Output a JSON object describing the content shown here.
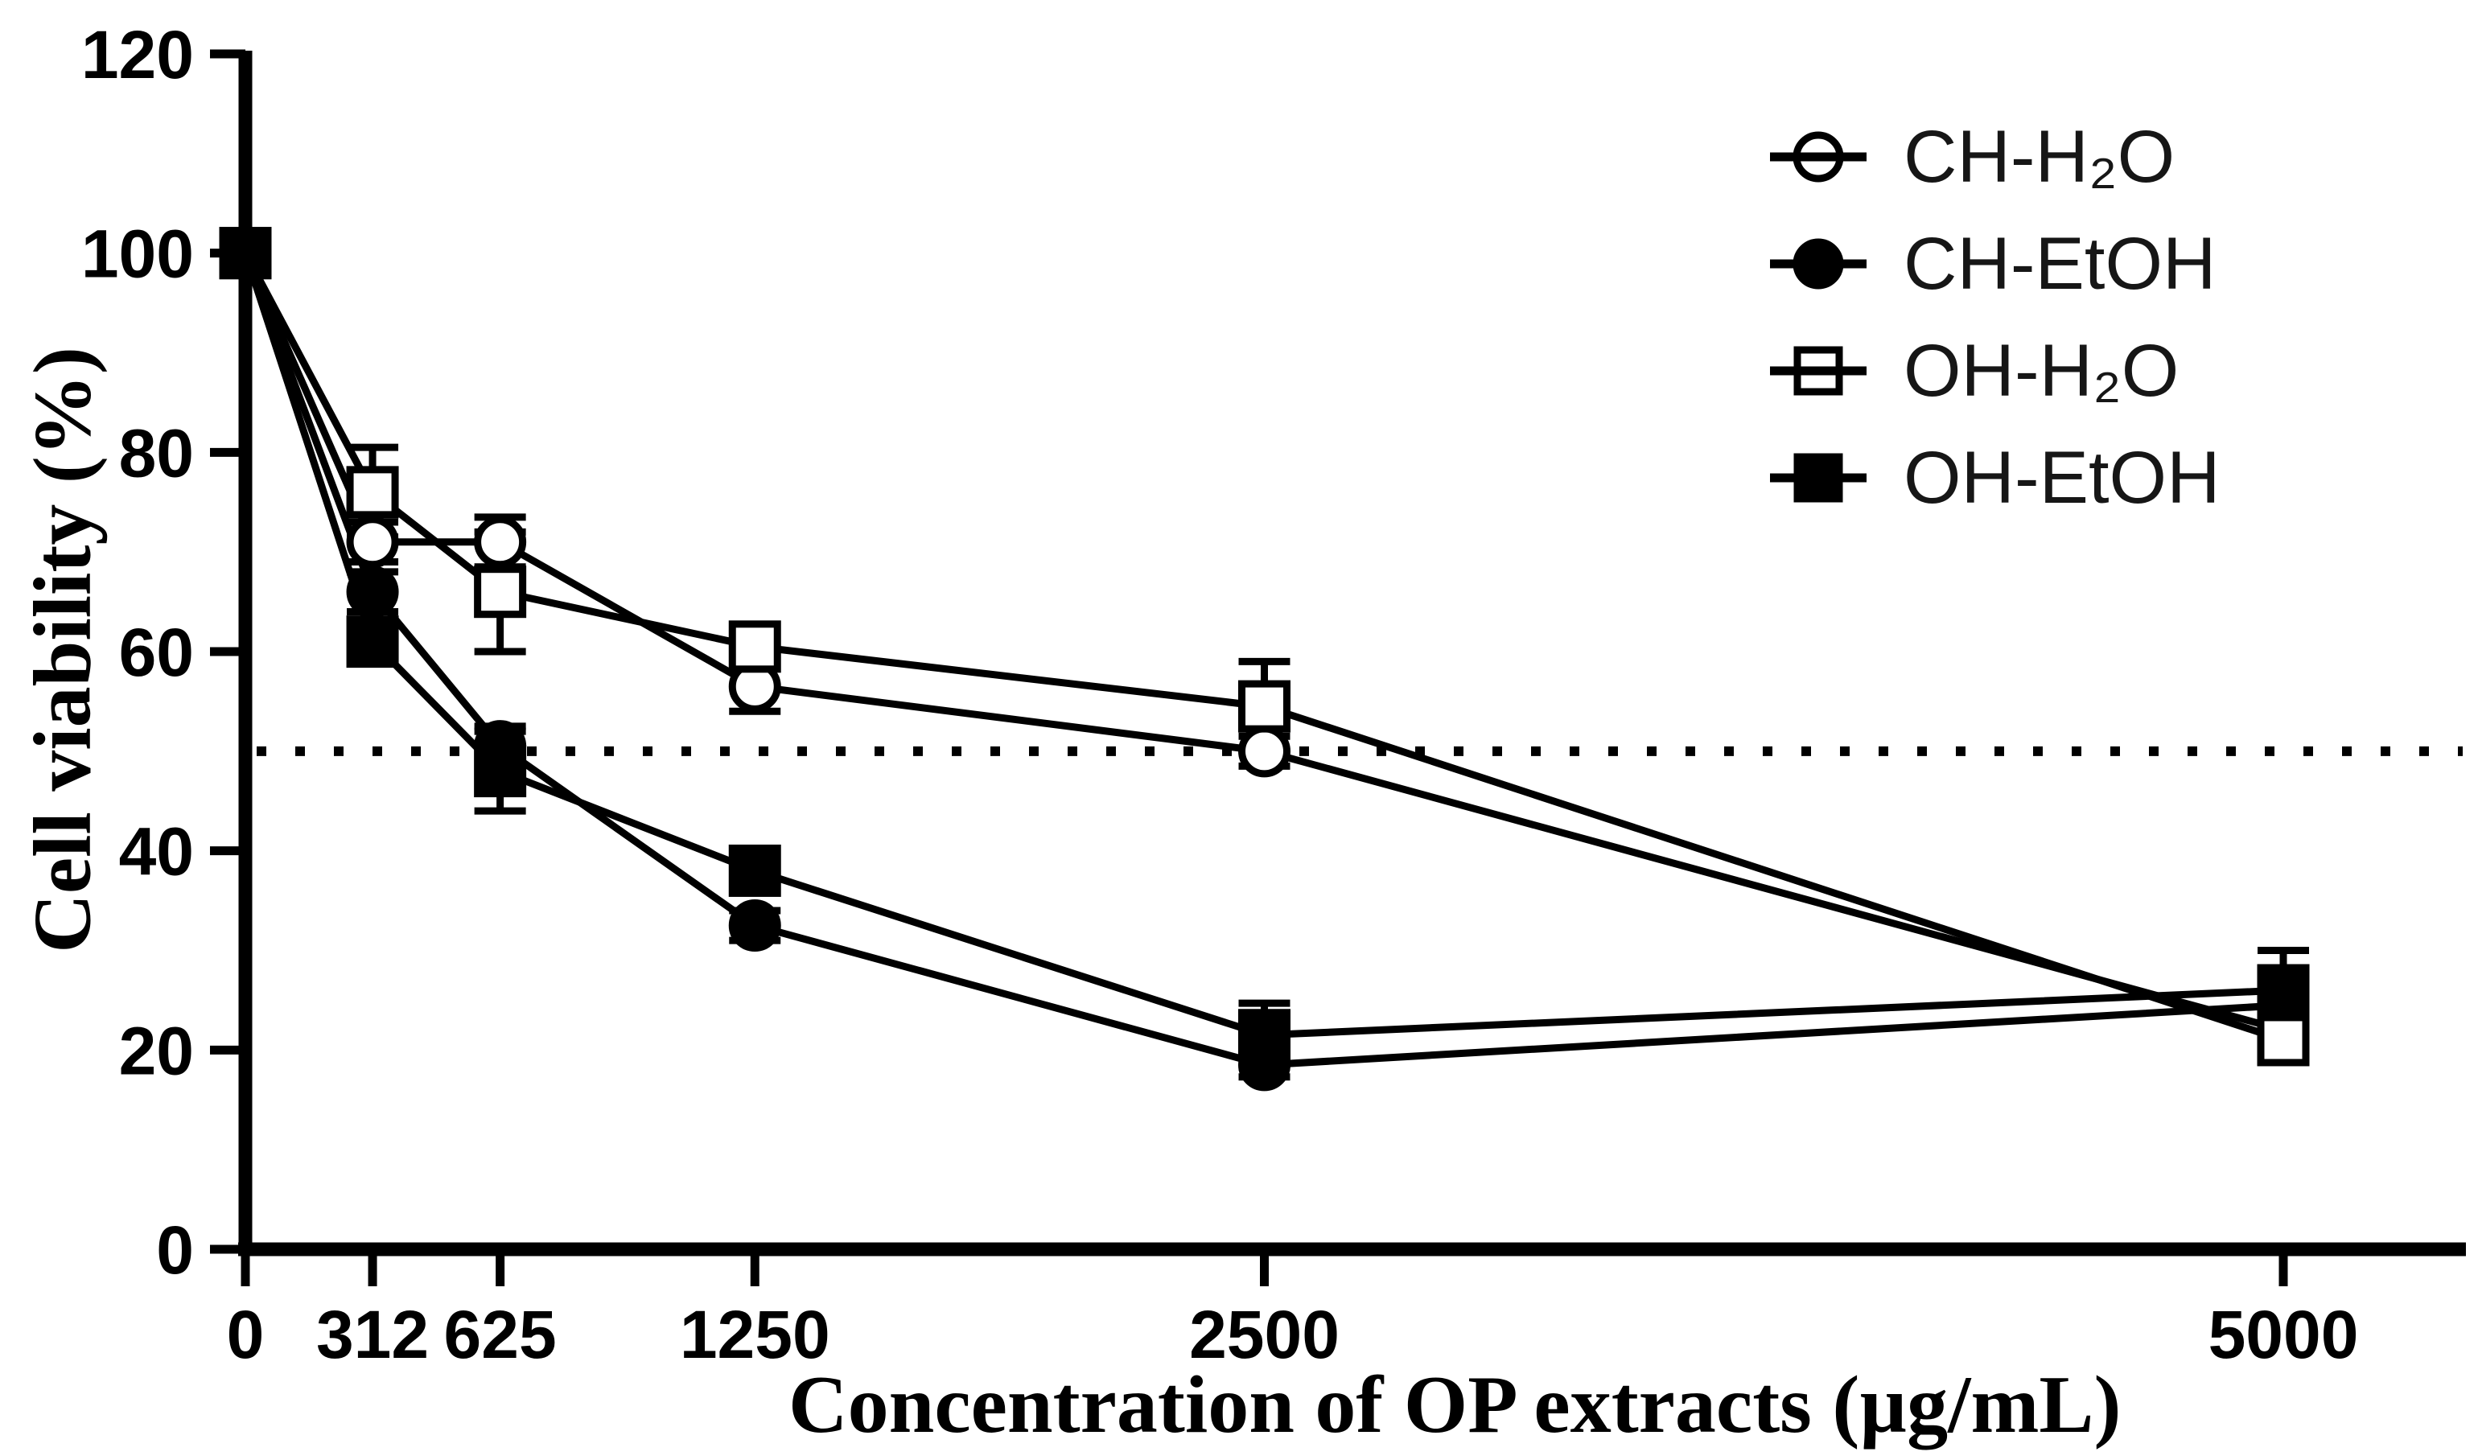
{
  "figure": {
    "background": "#ffffff",
    "ink_color": "#000000",
    "legend_text_color": "#161616"
  },
  "chart_data": {
    "type": "line",
    "title": "",
    "xlabel": "Concentration of OP extracts (µg/mL)",
    "ylabel": "Cell viability (%)",
    "x": [
      0,
      312,
      625,
      1250,
      2500,
      5000
    ],
    "x_tick_labels": [
      "0",
      "312",
      "625",
      "1250",
      "2500",
      "5000"
    ],
    "y_ticks": [
      0,
      20,
      40,
      60,
      80,
      100,
      120
    ],
    "ylim": [
      0,
      120
    ],
    "xlim": [
      0,
      5450
    ],
    "grid": false,
    "legend_position": "top-right",
    "reference_line": {
      "y": 50,
      "style": "dotted"
    },
    "series": [
      {
        "name": "CH-H₂O",
        "marker": "circle",
        "fill": "open",
        "values": [
          100,
          71,
          71,
          56.5,
          50,
          22
        ],
        "errors": [
          0.8,
          2,
          2.5,
          2.5,
          1.5,
          1.5
        ]
      },
      {
        "name": "CH-EtOH",
        "marker": "circle",
        "fill": "solid",
        "values": [
          100,
          66,
          50.5,
          32.5,
          18.5,
          24.5
        ],
        "errors": [
          0.8,
          2,
          2,
          1.5,
          1.2,
          1
        ]
      },
      {
        "name": "OH-H₂O",
        "marker": "square",
        "fill": "open",
        "values": [
          100,
          76,
          66,
          60.5,
          54.5,
          21
        ],
        "errors": [
          0.8,
          4.5,
          6,
          1.5,
          4.5,
          1.5
        ]
      },
      {
        "name": "OH-EtOH",
        "marker": "square",
        "fill": "solid",
        "values": [
          100,
          61,
          48,
          38,
          21.5,
          26
        ],
        "errors": [
          0.8,
          2,
          4,
          1.5,
          3.2,
          4
        ]
      }
    ]
  }
}
